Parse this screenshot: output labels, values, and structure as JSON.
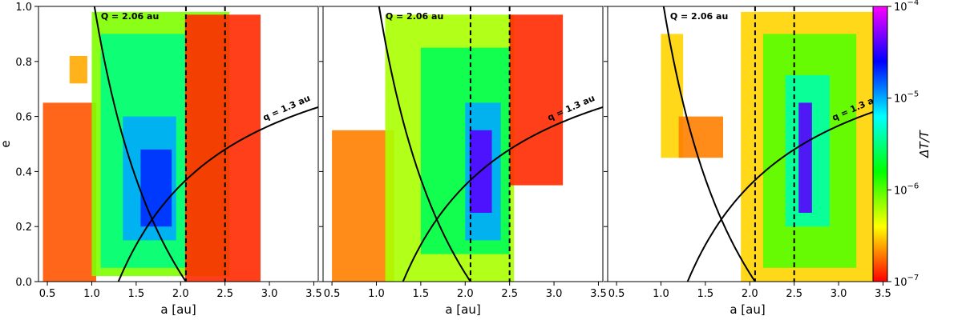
{
  "chart_data": {
    "type": "heatmap",
    "panels": [
      {
        "xlabel": "a [au]",
        "ylabel": "e",
        "xlim": [
          0.4,
          3.55
        ],
        "ylim": [
          0.0,
          1.0
        ],
        "xticks": [
          "0.5",
          "1.0",
          "1.5",
          "2.0",
          "2.5",
          "3.0",
          "3.5"
        ],
        "yticks": [
          "0.0",
          "0.2",
          "0.4",
          "0.6",
          "0.8",
          "1.0"
        ],
        "regions": [
          {
            "a": [
              0.45,
              1.05
            ],
            "e": [
              0.0,
              0.65
            ],
            "log_dT_T": -6.8
          },
          {
            "a": [
              0.75,
              0.95
            ],
            "e": [
              0.72,
              0.82
            ],
            "log_dT_T": -6.6
          },
          {
            "a": [
              1.0,
              2.55
            ],
            "e": [
              0.02,
              0.98
            ],
            "log_dT_T": -6.1
          },
          {
            "a": [
              2.05,
              2.9
            ],
            "e": [
              0.0,
              0.97
            ],
            "log_dT_T": -6.9
          },
          {
            "a": [
              1.1,
              2.05
            ],
            "e": [
              0.05,
              0.9
            ],
            "log_dT_T": -5.5
          },
          {
            "a": [
              1.35,
              1.95
            ],
            "e": [
              0.15,
              0.6
            ],
            "log_dT_T": -5.0
          },
          {
            "a": [
              1.55,
              1.9
            ],
            "e": [
              0.2,
              0.48
            ],
            "log_dT_T": -4.7
          }
        ]
      },
      {
        "xlabel": "a [au]",
        "ylabel": "",
        "xlim": [
          0.4,
          3.55
        ],
        "ylim": [
          0.0,
          1.0
        ],
        "xticks": [
          "0.5",
          "1.0",
          "1.5",
          "2.0",
          "2.5",
          "3.0",
          "3.5"
        ],
        "yticks": [],
        "regions": [
          {
            "a": [
              0.5,
              1.2
            ],
            "e": [
              0.0,
              0.55
            ],
            "log_dT_T": -6.7
          },
          {
            "a": [
              1.1,
              2.55
            ],
            "e": [
              0.0,
              0.97
            ],
            "log_dT_T": -6.2
          },
          {
            "a": [
              2.5,
              3.1
            ],
            "e": [
              0.35,
              0.97
            ],
            "log_dT_T": -6.9
          },
          {
            "a": [
              1.5,
              2.5
            ],
            "e": [
              0.1,
              0.85
            ],
            "log_dT_T": -5.6
          },
          {
            "a": [
              2.0,
              2.4
            ],
            "e": [
              0.15,
              0.65
            ],
            "log_dT_T": -5.0
          },
          {
            "a": [
              2.05,
              2.3
            ],
            "e": [
              0.25,
              0.55
            ],
            "log_dT_T": -4.4
          }
        ]
      },
      {
        "xlabel": "a [au]",
        "ylabel": "",
        "xlim": [
          0.4,
          3.55
        ],
        "ylim": [
          0.0,
          1.0
        ],
        "xticks": [
          "0.5",
          "1.0",
          "1.5",
          "2.0",
          "2.5",
          "3.0",
          "3.5"
        ],
        "yticks": [],
        "regions": [
          {
            "a": [
              1.0,
              1.25
            ],
            "e": [
              0.45,
              0.9
            ],
            "log_dT_T": -6.5
          },
          {
            "a": [
              1.2,
              1.7
            ],
            "e": [
              0.45,
              0.6
            ],
            "log_dT_T": -6.7
          },
          {
            "a": [
              1.9,
              3.55
            ],
            "e": [
              0.0,
              0.98
            ],
            "log_dT_T": -6.5
          },
          {
            "a": [
              2.15,
              3.2
            ],
            "e": [
              0.05,
              0.9
            ],
            "log_dT_T": -6.0
          },
          {
            "a": [
              2.4,
              2.9
            ],
            "e": [
              0.2,
              0.75
            ],
            "log_dT_T": -5.4
          },
          {
            "a": [
              2.55,
              2.7
            ],
            "e": [
              0.25,
              0.65
            ],
            "log_dT_T": -4.4
          }
        ]
      }
    ],
    "curves": [
      {
        "label": "Q = 2.06 au",
        "type": "aphelion",
        "value": 2.06
      },
      {
        "label": "q = 1.3 au",
        "type": "perihelion",
        "value": 1.3
      }
    ],
    "vlines": [
      2.06,
      2.5
    ],
    "colorbar": {
      "label": "ΔT/T",
      "scale": "log",
      "range": [
        -7,
        -4
      ],
      "ticks": [
        {
          "base": "10",
          "exp": "−7",
          "value": -7
        },
        {
          "base": "10",
          "exp": "−6",
          "value": -6
        },
        {
          "base": "10",
          "exp": "−5",
          "value": -5
        },
        {
          "base": "10",
          "exp": "−4",
          "value": -4
        }
      ],
      "colors": [
        "#ff0000",
        "#ffff00",
        "#00ff00",
        "#00ffff",
        "#0000ff",
        "#ff00ff"
      ]
    }
  }
}
